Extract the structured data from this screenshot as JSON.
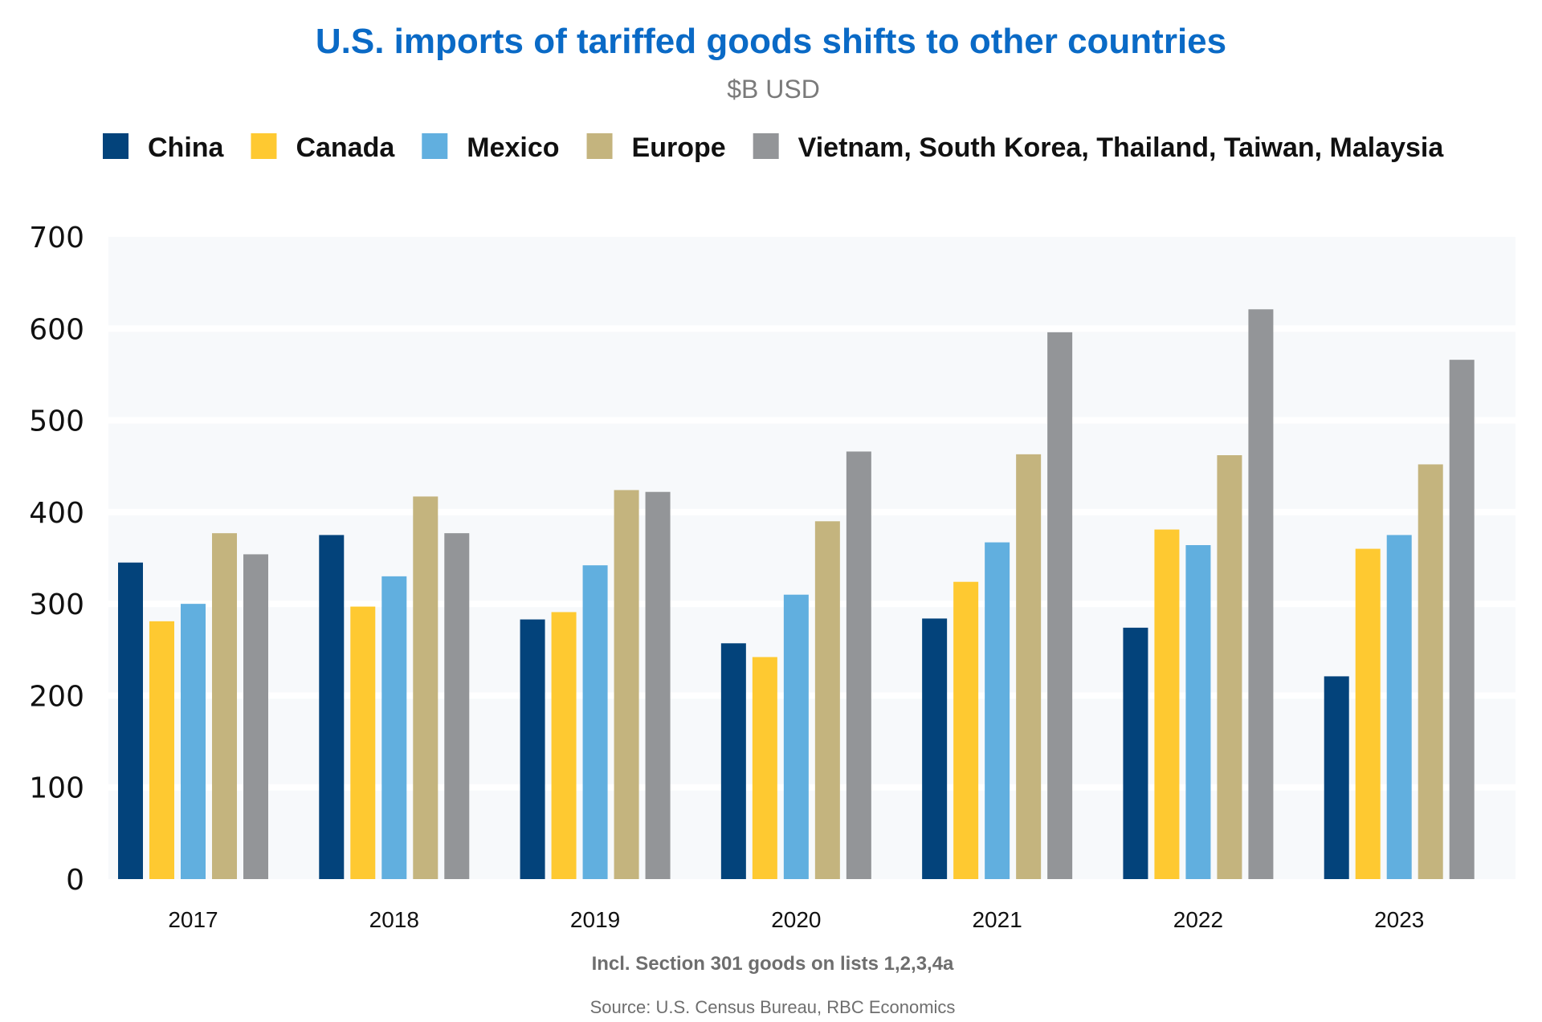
{
  "chart_data": {
    "type": "bar",
    "title": "U.S. imports of tariffed goods shifts to other countries",
    "subtitle": "$B USD",
    "xlabel": "",
    "ylabel": "",
    "ylim": [
      0,
      700
    ],
    "yticks": [
      0,
      100,
      200,
      300,
      400,
      500,
      600,
      700
    ],
    "grid": true,
    "legend_position": "top",
    "categories": [
      "2017",
      "2018",
      "2019",
      "2020",
      "2021",
      "2022",
      "2023"
    ],
    "series": [
      {
        "name": "China",
        "color": "#03437b",
        "values": [
          345,
          375,
          283,
          257,
          284,
          274,
          221
        ]
      },
      {
        "name": "Canada",
        "color": "#fec931",
        "values": [
          281,
          297,
          291,
          242,
          324,
          381,
          360
        ]
      },
      {
        "name": "Mexico",
        "color": "#61afdf",
        "values": [
          300,
          330,
          342,
          310,
          367,
          364,
          375
        ]
      },
      {
        "name": "Europe",
        "color": "#c4b47e",
        "values": [
          377,
          417,
          424,
          390,
          463,
          462,
          452
        ]
      },
      {
        "name": "Vietnam, South Korea, Thailand, Taiwan, Malaysia",
        "color": "#939598",
        "values": [
          354,
          377,
          422,
          466,
          596,
          621,
          566
        ]
      }
    ],
    "annotations": [
      "Incl. Section 301 goods on lists 1,2,3,4a",
      "Source: U.S. Census Bureau, RBC Economics"
    ]
  },
  "colors": {
    "title": "#0a6ac6",
    "plot_background": "#f7f9fb",
    "gridline": "#ffffff"
  }
}
